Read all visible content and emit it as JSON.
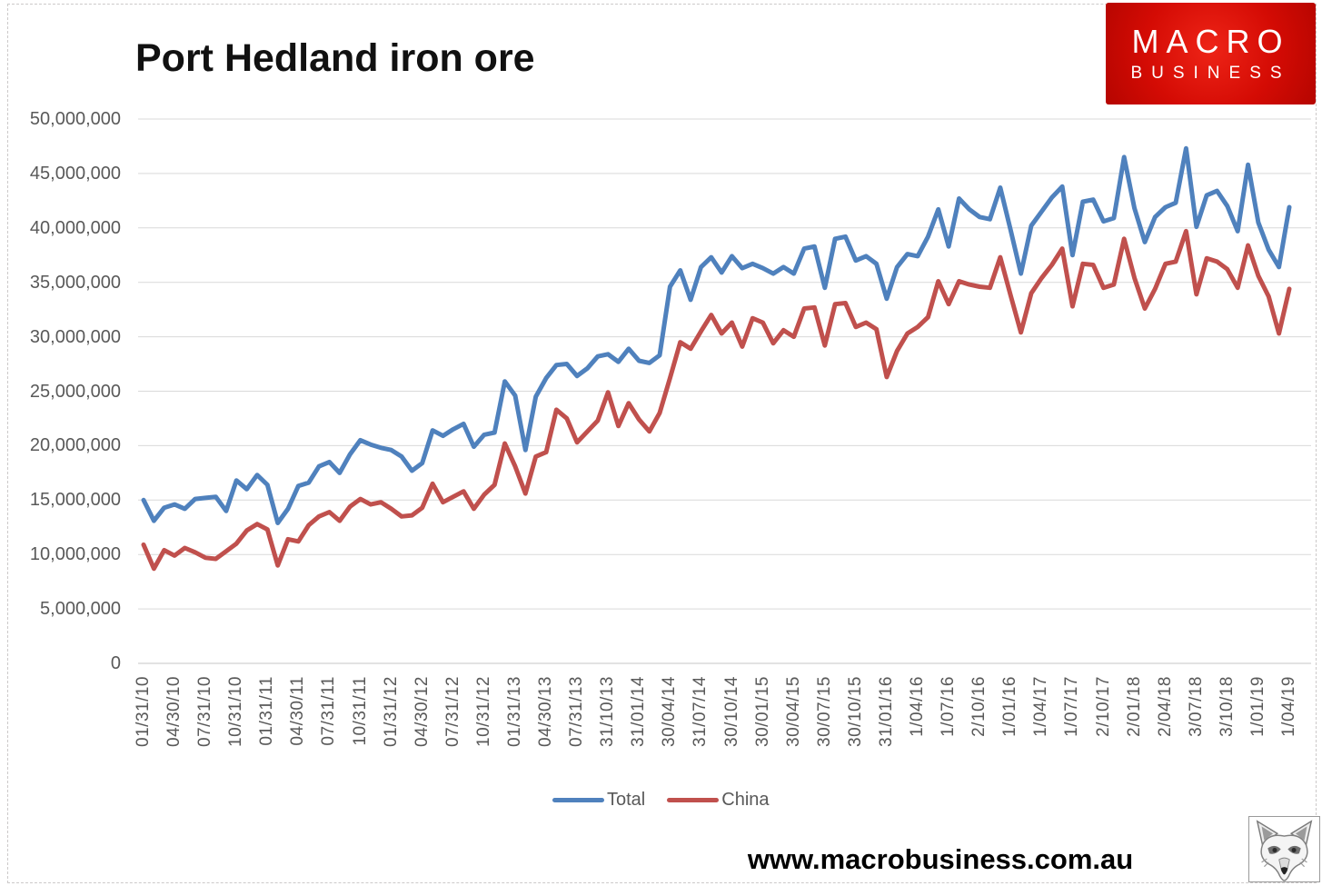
{
  "header": {
    "title": "Port Hedland iron ore",
    "logo": {
      "line1": "MACRO",
      "line2": "BUSINESS",
      "bg_color": "#d40b04",
      "text_color": "#ffffff"
    }
  },
  "footer": {
    "url": "www.macrobusiness.com.au",
    "wolf_logo": "wolf-sketch-image"
  },
  "chart_data": {
    "type": "line",
    "title": "Port Hedland iron ore",
    "xlabel": "",
    "ylabel": "",
    "ylim": [
      0,
      50000000
    ],
    "y_tick_step": 5000000,
    "grid": true,
    "legend_position": "bottom",
    "y_tick_labels": [
      "0",
      "5,000,000",
      "10,000,000",
      "15,000,000",
      "20,000,000",
      "25,000,000",
      "30,000,000",
      "35,000,000",
      "40,000,000",
      "45,000,000",
      "50,000,000"
    ],
    "x_tick_every": 3,
    "x_tick_labels": [
      "01/31/10",
      "04/30/10",
      "07/31/10",
      "10/31/10",
      "01/31/11",
      "04/30/11",
      "07/31/11",
      "10/31/11",
      "01/31/12",
      "04/30/12",
      "07/31/12",
      "10/31/12",
      "01/31/13",
      "04/30/13",
      "07/31/13",
      "31/10/13",
      "31/01/14",
      "30/04/14",
      "31/07/14",
      "30/10/14",
      "30/01/15",
      "30/04/15",
      "30/07/15",
      "30/10/15",
      "31/01/16",
      "1/04/16",
      "1/07/16",
      "2/10/16",
      "1/01/16",
      "1/04/17",
      "1/07/17",
      "2/10/17",
      "2/01/18",
      "2/04/18",
      "3/07/18",
      "3/10/18",
      "1/01/19",
      "1/04/19"
    ],
    "series": [
      {
        "name": "Total",
        "color": "#4F81BD",
        "values": [
          15000000,
          13100000,
          14300000,
          14600000,
          14200000,
          15100000,
          15200000,
          15300000,
          14000000,
          16800000,
          16000000,
          17300000,
          16400000,
          12900000,
          14200000,
          16300000,
          16600000,
          18100000,
          18500000,
          17500000,
          19200000,
          20500000,
          20100000,
          19800000,
          19600000,
          19000000,
          17700000,
          18400000,
          21400000,
          20900000,
          21500000,
          22000000,
          19900000,
          21000000,
          21200000,
          25900000,
          24600000,
          19600000,
          24500000,
          26200000,
          27400000,
          27500000,
          26400000,
          27100000,
          28200000,
          28400000,
          27700000,
          28900000,
          27800000,
          27600000,
          28300000,
          34600000,
          36100000,
          33400000,
          36400000,
          37300000,
          35900000,
          37400000,
          36300000,
          36700000,
          36300000,
          35800000,
          36400000,
          35800000,
          38100000,
          38300000,
          34500000,
          39000000,
          39200000,
          37000000,
          37400000,
          36700000,
          33500000,
          36400000,
          37600000,
          37400000,
          39200000,
          41700000,
          38300000,
          42700000,
          41700000,
          41000000,
          40800000,
          43700000,
          39800000,
          35800000,
          40200000,
          41500000,
          42800000,
          43800000,
          37500000,
          42400000,
          42600000,
          40600000,
          40900000,
          46500000,
          41800000,
          38700000,
          41000000,
          41900000,
          42300000,
          47300000,
          40100000,
          43000000,
          43400000,
          42000000,
          39700000,
          45800000,
          40500000,
          38000000,
          36400000,
          41900000
        ]
      },
      {
        "name": "China",
        "color": "#C0504D",
        "values": [
          10900000,
          8700000,
          10400000,
          9900000,
          10600000,
          10200000,
          9700000,
          9600000,
          10300000,
          11000000,
          12200000,
          12800000,
          12300000,
          9000000,
          11400000,
          11200000,
          12700000,
          13500000,
          13900000,
          13100000,
          14400000,
          15100000,
          14600000,
          14800000,
          14200000,
          13500000,
          13600000,
          14300000,
          16500000,
          14800000,
          15300000,
          15800000,
          14200000,
          15500000,
          16400000,
          20200000,
          18100000,
          15600000,
          19000000,
          19400000,
          23300000,
          22500000,
          20300000,
          21300000,
          22300000,
          24900000,
          21800000,
          23900000,
          22400000,
          21300000,
          23000000,
          26200000,
          29500000,
          28900000,
          30500000,
          32000000,
          30300000,
          31300000,
          29100000,
          31700000,
          31300000,
          29400000,
          30600000,
          30000000,
          32600000,
          32700000,
          29200000,
          33000000,
          33100000,
          30900000,
          31300000,
          30700000,
          26300000,
          28700000,
          30300000,
          30900000,
          31800000,
          35100000,
          33000000,
          35100000,
          34800000,
          34600000,
          34500000,
          37300000,
          33800000,
          30400000,
          34000000,
          35400000,
          36600000,
          38100000,
          32800000,
          36700000,
          36600000,
          34500000,
          34800000,
          39000000,
          35400000,
          32600000,
          34400000,
          36700000,
          36900000,
          39700000,
          33900000,
          37200000,
          36900000,
          36200000,
          34500000,
          38400000,
          35600000,
          33700000,
          30300000,
          34400000
        ]
      }
    ]
  }
}
